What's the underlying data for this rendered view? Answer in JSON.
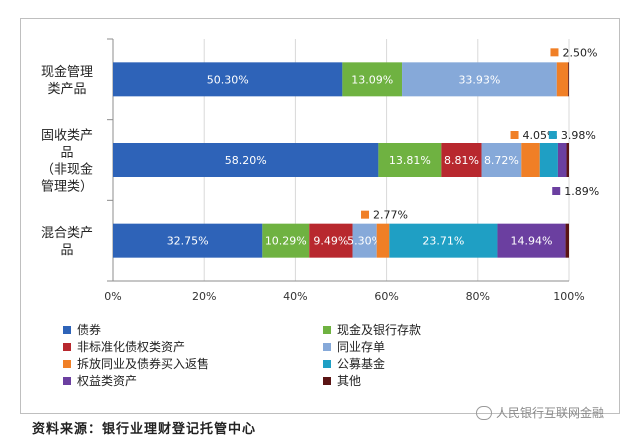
{
  "chart_data": {
    "type": "bar",
    "orientation": "horizontal",
    "stacked": true,
    "percent": true,
    "xlim": [
      0,
      100
    ],
    "x_ticks": [
      "0%",
      "20%",
      "40%",
      "60%",
      "80%",
      "100%"
    ],
    "categories": [
      [
        "现金管理",
        "类产品"
      ],
      [
        "固收类产",
        "品",
        "（非现金",
        "管理类）"
      ],
      [
        "混合类产",
        "品"
      ]
    ],
    "series": [
      {
        "name": "债券",
        "color": "#2e63b8",
        "values": [
          50.3,
          58.2,
          32.75
        ],
        "labels": [
          "50.30%",
          "58.20%",
          "32.75%"
        ]
      },
      {
        "name": "现金及银行存款",
        "color": "#6fb241",
        "values": [
          13.09,
          13.81,
          10.29
        ],
        "labels": [
          "13.09%",
          "13.81%",
          "10.29%"
        ]
      },
      {
        "name": "非标准化债权类资产",
        "color": "#b8282e",
        "values": [
          0,
          8.81,
          9.49
        ],
        "labels": [
          "",
          "8.81%",
          "9.49%"
        ]
      },
      {
        "name": "同业存单",
        "color": "#86a9d9",
        "values": [
          33.93,
          8.72,
          5.3
        ],
        "labels": [
          "33.93%",
          "8.72%",
          "5.30%"
        ]
      },
      {
        "name": "拆放同业及债券买入返售",
        "color": "#f07f26",
        "values": [
          2.5,
          4.05,
          2.77
        ],
        "labels": [
          "",
          "",
          ""
        ]
      },
      {
        "name": "公募基金",
        "color": "#1f9fc4",
        "values": [
          0,
          3.98,
          23.71
        ],
        "labels": [
          "",
          "",
          "23.71%"
        ]
      },
      {
        "name": "权益类资产",
        "color": "#6b3fa0",
        "values": [
          0,
          1.89,
          14.94
        ],
        "labels": [
          "",
          "",
          "14.94%"
        ]
      },
      {
        "name": "其他",
        "color": "#5a1414",
        "values": [
          0.18,
          0.54,
          0.75
        ],
        "labels": [
          "",
          "",
          ""
        ]
      }
    ],
    "callouts": [
      {
        "row": 0,
        "series": 4,
        "text": "2.50%"
      },
      {
        "row": 1,
        "series": 4,
        "text": "4.05%"
      },
      {
        "row": 1,
        "series": 5,
        "text": "3.98%"
      },
      {
        "row": 1,
        "series": 6,
        "text": "1.89%"
      },
      {
        "row": 2,
        "series": 4,
        "text": "2.77%"
      }
    ],
    "legend_position": "bottom",
    "grid": true
  },
  "source": "资料来源：银行业理财登记托管中心",
  "watermark": "人民银行互联网金融"
}
